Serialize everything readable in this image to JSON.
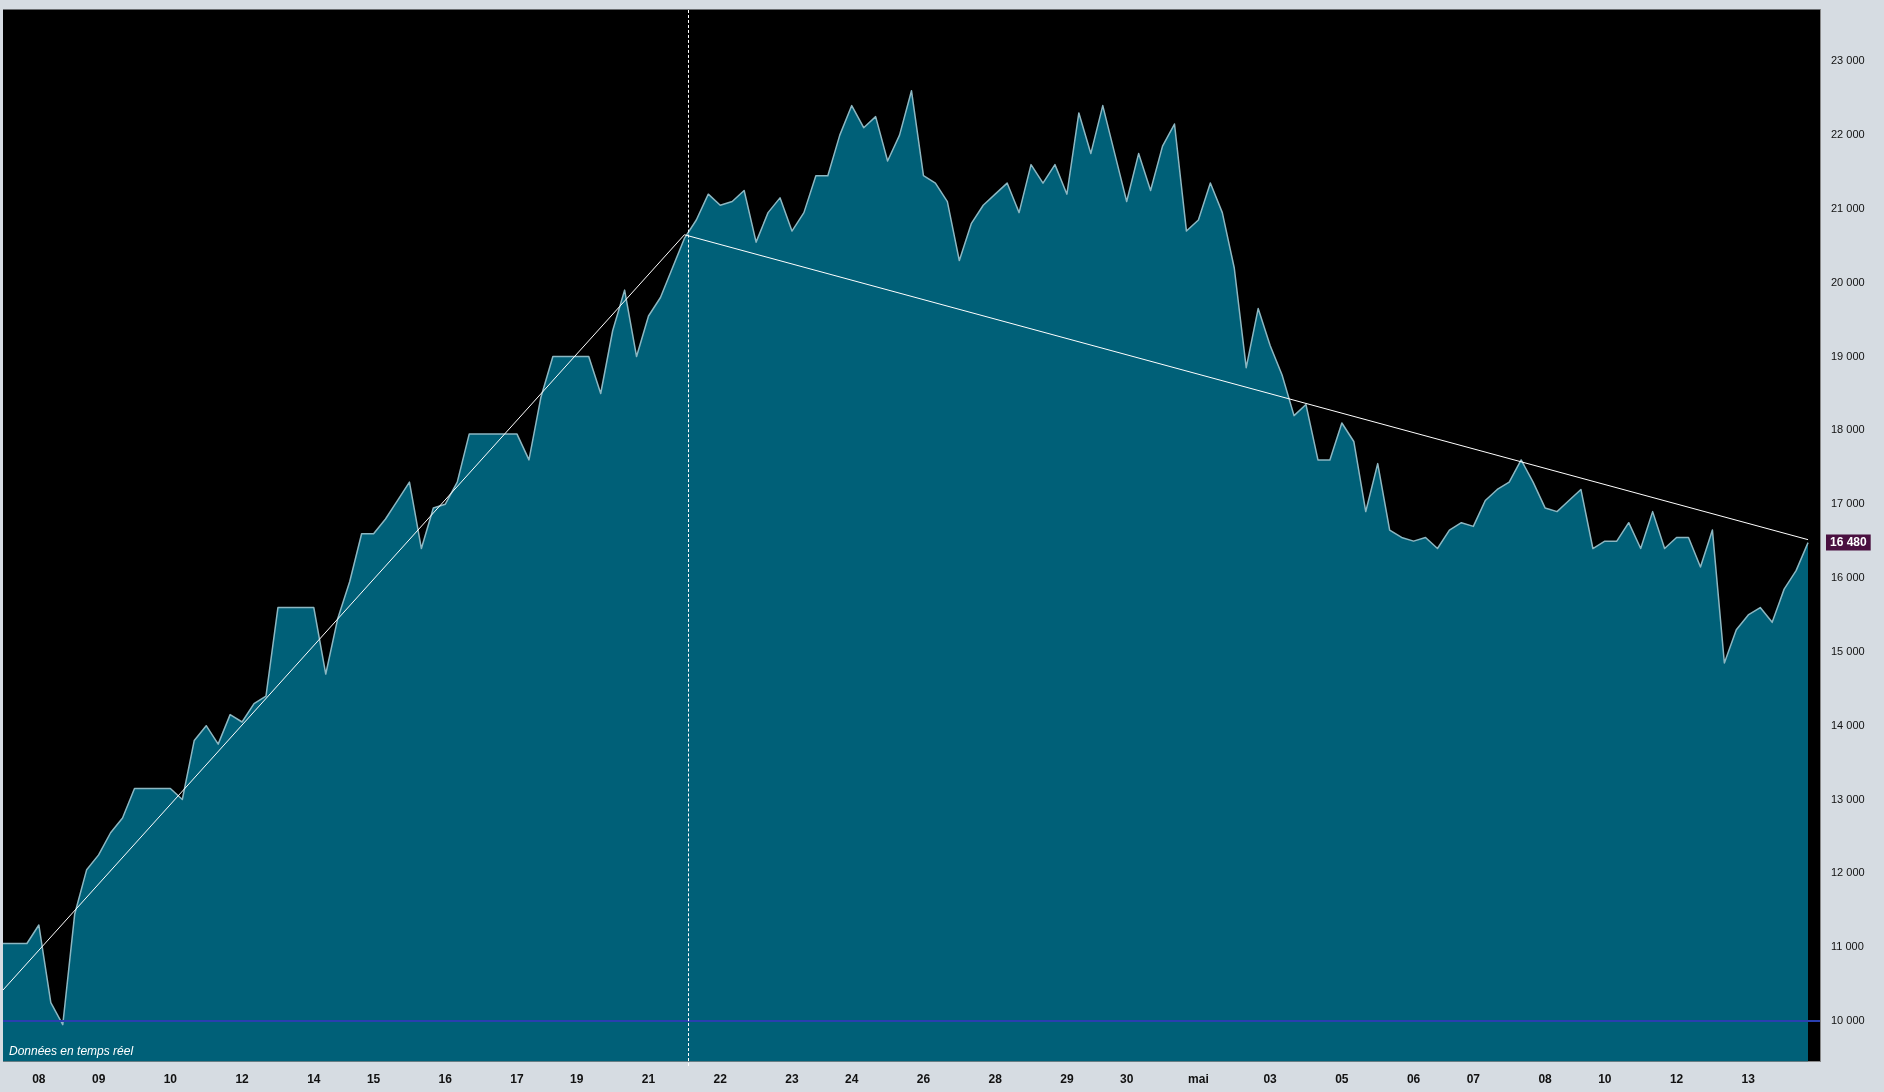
{
  "chart_data": {
    "type": "area",
    "categories": [
      null,
      null,
      null,
      "08",
      null,
      null,
      null,
      null,
      "09",
      null,
      null,
      null,
      null,
      null,
      "10",
      null,
      null,
      null,
      null,
      null,
      "12",
      null,
      null,
      null,
      null,
      null,
      "14",
      null,
      null,
      null,
      null,
      "15",
      null,
      null,
      null,
      null,
      null,
      "16",
      null,
      null,
      null,
      null,
      null,
      "17",
      null,
      null,
      null,
      null,
      "19",
      null,
      null,
      null,
      null,
      null,
      "21",
      null,
      null,
      null,
      null,
      null,
      "22",
      null,
      null,
      null,
      null,
      null,
      "23",
      null,
      null,
      null,
      null,
      "24",
      null,
      null,
      null,
      null,
      null,
      "26",
      null,
      null,
      null,
      null,
      null,
      "28",
      null,
      null,
      null,
      null,
      null,
      "29",
      null,
      null,
      null,
      null,
      "30",
      null,
      null,
      null,
      null,
      null,
      "mai",
      null,
      null,
      null,
      null,
      null,
      "03",
      null,
      null,
      null,
      null,
      null,
      "05",
      null,
      null,
      null,
      null,
      null,
      "06",
      null,
      null,
      null,
      null,
      "07",
      null,
      null,
      null,
      null,
      null,
      "08",
      null,
      null,
      null,
      null,
      "10",
      null,
      null,
      null,
      null,
      null,
      "12",
      null,
      null,
      null,
      null,
      null,
      "13",
      null,
      null,
      null,
      null,
      null,
      null
    ],
    "ylim": [
      9450,
      23700
    ],
    "yticks": [
      {
        "value": 10000,
        "label": "10 000"
      },
      {
        "value": 11000,
        "label": "11 000"
      },
      {
        "value": 12000,
        "label": "12 000"
      },
      {
        "value": 13000,
        "label": "13 000"
      },
      {
        "value": 14000,
        "label": "14 000"
      },
      {
        "value": 15000,
        "label": "15 000"
      },
      {
        "value": 16000,
        "label": "16 000"
      },
      {
        "value": 17000,
        "label": "17 000"
      },
      {
        "value": 18000,
        "label": "18 000"
      },
      {
        "value": 19000,
        "label": "19 000"
      },
      {
        "value": 20000,
        "label": "20 000"
      },
      {
        "value": 21000,
        "label": "21 000"
      },
      {
        "value": 22000,
        "label": "22 000"
      },
      {
        "value": 23000,
        "label": "23 000"
      }
    ],
    "grid": false,
    "legend": false,
    "series": [
      {
        "color": "#006078",
        "values": [
          11050,
          11050,
          11050,
          11300,
          10250,
          9950,
          11450,
          12050,
          12250,
          12550,
          12750,
          13150,
          13150,
          13150,
          13150,
          13000,
          13800,
          14000,
          13750,
          14150,
          14050,
          14300,
          14400,
          15600,
          15600,
          15600,
          15600,
          14700,
          15450,
          15950,
          16600,
          16600,
          16800,
          17050,
          17300,
          16400,
          16950,
          17000,
          17300,
          17950,
          17950,
          17950,
          17950,
          17950,
          17600,
          18450,
          19000,
          19000,
          19000,
          19000,
          18500,
          19350,
          19900,
          19000,
          19550,
          19800,
          20200,
          20600,
          20850,
          21200,
          21050,
          21100,
          21250,
          20550,
          20950,
          21150,
          20700,
          20950,
          21450,
          21450,
          22000,
          22400,
          22100,
          22250,
          21650,
          22000,
          22600,
          21450,
          21350,
          21100,
          20300,
          20800,
          21050,
          21200,
          21350,
          20950,
          21600,
          21350,
          21600,
          21200,
          22300,
          21750,
          22400,
          21750,
          21100,
          21750,
          21250,
          21850,
          22150,
          20700,
          20850,
          21350,
          20950,
          20200,
          18850,
          19650,
          19150,
          18750,
          18200,
          18350,
          17600,
          17600,
          18100,
          17850,
          16900,
          17550,
          16650,
          16550,
          16500,
          16550,
          16400,
          16650,
          16750,
          16700,
          17050,
          17200,
          17300,
          17600,
          17300,
          16950,
          16900,
          17050,
          17200,
          16400,
          16500,
          16500,
          16750,
          16400,
          16900,
          16400,
          16550,
          16550,
          16150,
          16650,
          14850,
          15300,
          15500,
          15600,
          15400,
          15850,
          16100,
          16480,
          null
        ]
      },
      {
        "type": "line",
        "color": "#ffffff",
        "values": [
          10420,
          null,
          null,
          null,
          null,
          null,
          null,
          null,
          null,
          null,
          null,
          null,
          null,
          null,
          null,
          null,
          null,
          null,
          null,
          null,
          null,
          null,
          null,
          null,
          null,
          null,
          null,
          null,
          null,
          null,
          null,
          null,
          null,
          null,
          null,
          null,
          null,
          null,
          null,
          null,
          null,
          null,
          null,
          null,
          null,
          null,
          null,
          null,
          null,
          null,
          null,
          null,
          null,
          null,
          null,
          null,
          null,
          20650,
          null,
          null,
          null,
          null,
          null,
          null,
          null,
          null,
          null,
          null,
          null,
          null,
          null,
          null,
          null,
          null,
          null,
          null,
          null,
          null,
          null,
          null,
          null,
          null,
          null,
          null,
          null,
          null,
          null,
          null,
          null,
          null,
          null,
          null,
          null,
          null,
          null,
          null,
          null,
          null,
          null,
          null,
          null,
          null,
          null,
          null,
          null,
          null,
          null,
          null,
          null,
          null,
          null,
          null,
          null,
          null,
          null,
          null,
          null,
          null,
          null,
          null,
          null,
          null,
          null,
          null,
          null,
          null,
          null,
          null,
          null,
          null,
          null,
          null,
          null,
          null,
          null,
          null,
          null,
          null,
          null,
          null,
          null,
          null,
          null,
          null,
          null,
          null,
          null,
          null,
          null,
          null,
          null,
          16520,
          null
        ]
      }
    ],
    "ref_lines": [
      {
        "axis": "y",
        "value": 10000,
        "color": "#2a3fb0"
      }
    ],
    "annotations": [
      "16 480",
      "Données en temps réel"
    ]
  }
}
